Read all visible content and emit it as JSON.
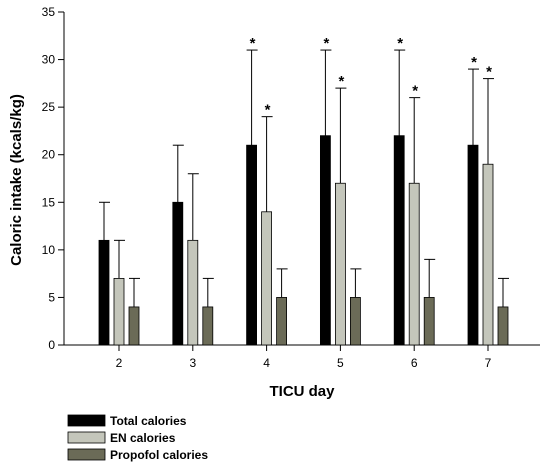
{
  "chart_data": {
    "type": "bar",
    "xlabel": "TICU day",
    "ylabel": "Caloric intake (kcals/kg)",
    "ylim": [
      0,
      35
    ],
    "yticks": [
      0,
      5,
      10,
      15,
      20,
      25,
      30,
      35
    ],
    "categories": [
      "2",
      "3",
      "4",
      "5",
      "6",
      "7"
    ],
    "grid": false,
    "legend_position": "bottom-left",
    "significance_marker": "*",
    "series": [
      {
        "name": "Total calories",
        "color": "#000000",
        "values": [
          11,
          15,
          21,
          22,
          22,
          21
        ],
        "error_upper": [
          15,
          21,
          31,
          31,
          31,
          29
        ],
        "significant": [
          false,
          false,
          true,
          true,
          true,
          true
        ]
      },
      {
        "name": "EN calories",
        "color": "#c4c6bb",
        "values": [
          7,
          11,
          14,
          17,
          17,
          19
        ],
        "error_upper": [
          11,
          18,
          24,
          27,
          26,
          28
        ],
        "significant": [
          false,
          false,
          true,
          true,
          true,
          true
        ]
      },
      {
        "name": "Propofol calories",
        "color": "#6b6b57",
        "values": [
          4,
          4,
          5,
          5,
          5,
          4
        ],
        "error_upper": [
          7,
          7,
          8,
          8,
          9,
          7
        ],
        "significant": [
          false,
          false,
          false,
          false,
          false,
          false
        ]
      }
    ]
  }
}
